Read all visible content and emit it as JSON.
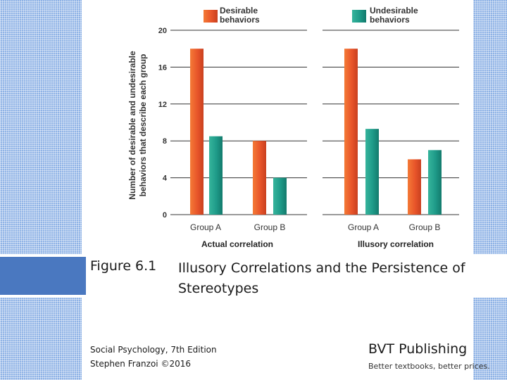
{
  "chart_data": [
    {
      "type": "bar",
      "title": "Actual correlation",
      "categories": [
        "Group A",
        "Group B"
      ],
      "series": [
        {
          "name": "Desirable behaviors",
          "values": [
            18,
            8
          ]
        },
        {
          "name": "Undesirable behaviors",
          "values": [
            8.5,
            4
          ]
        }
      ],
      "ylabel": "Number of desirable and undesirable behaviors that describe each group",
      "ylim": [
        0,
        20
      ],
      "yticks": [
        0,
        4,
        8,
        12,
        16,
        20
      ],
      "grid": true
    },
    {
      "type": "bar",
      "title": "Illusory correlation",
      "categories": [
        "Group A",
        "Group B"
      ],
      "series": [
        {
          "name": "Desirable behaviors",
          "values": [
            18,
            6
          ]
        },
        {
          "name": "Undesirable behaviors",
          "values": [
            9.3,
            7
          ]
        }
      ],
      "ylim": [
        0,
        20
      ],
      "grid": true
    }
  ],
  "legend": [
    {
      "line1": "Desirable",
      "line2": "behaviors",
      "color": "#e8552a"
    },
    {
      "line1": "Undesirable",
      "line2": "behaviors",
      "color": "#1e9a88"
    }
  ],
  "ylabel_lines": [
    "Number of desirable and undesirable",
    "behaviors that describe each group"
  ],
  "figure_label": "Figure 6.1",
  "figure_title": "Illusory Correlations and the Persistence of Stereotypes",
  "book_title": "Social Psychology, 7th Edition",
  "author_line": "Stephen Franzoi ©2016",
  "publisher": "BVT Publishing",
  "tagline": "Better textbooks, better prices."
}
